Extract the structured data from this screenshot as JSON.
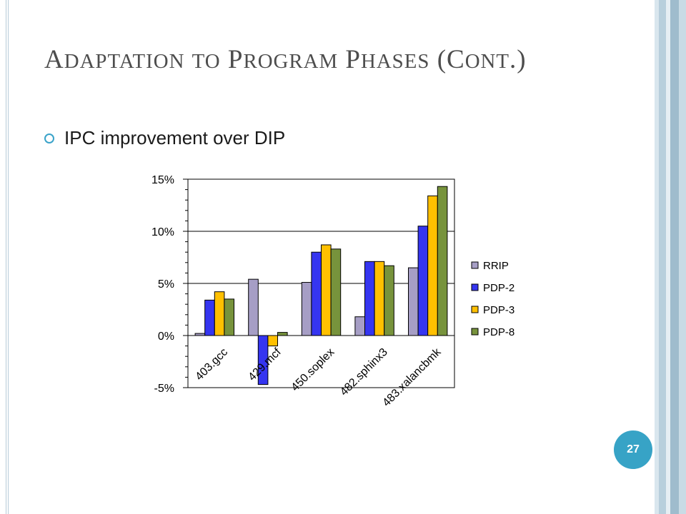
{
  "slide": {
    "title": "Adaptation to Program Phases (Cont.)",
    "bullet": "IPC improvement over DIP",
    "page_number": "27"
  },
  "colors": {
    "accent": "#37a3c6",
    "frame_stripes": [
      "#d9e6ee",
      "#b8cfdc",
      "#e6eef3",
      "#9fbccd",
      "#c9dbe5"
    ]
  },
  "chart_data": {
    "type": "bar",
    "categories": [
      "403.gcc",
      "429.mcf",
      "450.soplex",
      "482.sphinx3",
      "483.xalancbmk"
    ],
    "series": [
      {
        "name": "RRIP",
        "values": [
          0.2,
          5.4,
          5.1,
          1.8,
          6.5
        ],
        "color": "#a69ec5"
      },
      {
        "name": "PDP-2",
        "values": [
          3.4,
          -4.7,
          8.0,
          7.1,
          10.5
        ],
        "color": "#3535f0"
      },
      {
        "name": "PDP-3",
        "values": [
          4.2,
          -1.0,
          8.7,
          7.1,
          13.4
        ],
        "color": "#ffc000"
      },
      {
        "name": "PDP-8",
        "values": [
          3.5,
          0.3,
          8.3,
          6.7,
          14.3
        ],
        "color": "#77933c"
      }
    ],
    "ylim": [
      -5,
      15
    ],
    "yticks": [
      "-5%",
      "0%",
      "5%",
      "10%",
      "15%"
    ],
    "ytick_values": [
      -5,
      0,
      5,
      10,
      15
    ],
    "gridlines": true,
    "legend": "right",
    "xlabel": "",
    "ylabel": ""
  }
}
